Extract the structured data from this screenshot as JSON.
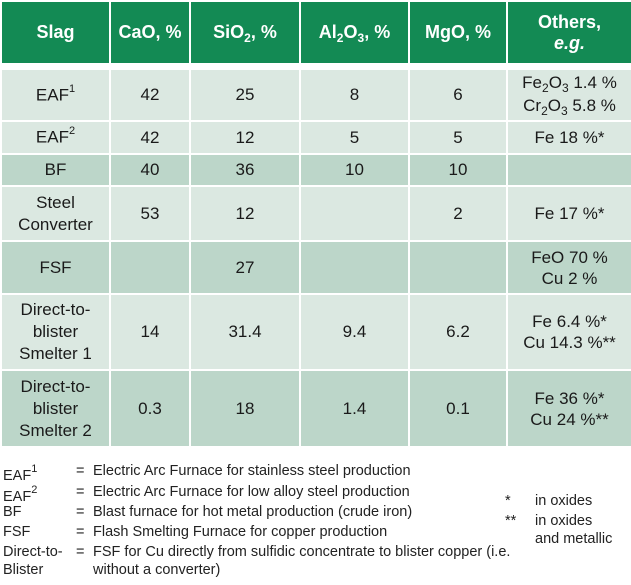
{
  "headers": {
    "slag": "Slag",
    "cao": "CaO, %",
    "sio2": [
      "SiO",
      "2",
      ", %"
    ],
    "al2o3": [
      "Al",
      "2",
      "O",
      "3",
      ", %"
    ],
    "mgo": "MgO, %",
    "others_line1": "Others,",
    "others_line2": "e.g."
  },
  "rows": [
    {
      "slag_lines": [
        "EAF"
      ],
      "sup": "1",
      "cao": "42",
      "sio2": "25",
      "al2o3": "8",
      "mgo": "6",
      "others_lines": [
        [
          "Fe",
          "2",
          "O",
          "3",
          " 1.4 %"
        ],
        [
          "Cr",
          "2",
          "O",
          "3",
          " 5.8 %"
        ]
      ]
    },
    {
      "slag_lines": [
        "EAF"
      ],
      "sup": "2",
      "cao": "42",
      "sio2": "12",
      "al2o3": "5",
      "mgo": "5",
      "others_lines": [
        "Fe 18 %*"
      ]
    },
    {
      "slag_lines": [
        "BF"
      ],
      "cao": "40",
      "sio2": "36",
      "al2o3": "10",
      "mgo": "10",
      "others_lines": []
    },
    {
      "slag_lines": [
        "Steel",
        "Converter"
      ],
      "cao": "53",
      "sio2": "12",
      "al2o3": "",
      "mgo": "2",
      "others_lines": [
        "Fe 17 %*"
      ]
    },
    {
      "slag_lines": [
        "FSF"
      ],
      "cao": "",
      "sio2": "27",
      "al2o3": "",
      "mgo": "",
      "others_lines": [
        "FeO 70 %",
        "Cu 2 %"
      ]
    },
    {
      "slag_lines": [
        "Direct-to-",
        "blister",
        "Smelter 1"
      ],
      "cao": "14",
      "sio2": "31.4",
      "al2o3": "9.4",
      "mgo": "6.2",
      "others_lines": [
        "Fe 6.4 %*",
        "Cu 14.3 %**"
      ]
    },
    {
      "slag_lines": [
        "Direct-to-",
        "blister",
        "Smelter 2"
      ],
      "cao": "0.3",
      "sio2": "18",
      "al2o3": "1.4",
      "mgo": "0.1",
      "others_lines": [
        "Fe 36 %*",
        "Cu 24 %**"
      ]
    }
  ],
  "footnotes": [
    {
      "key": "EAF",
      "sup": "1",
      "eq": "=",
      "text": "Electric Arc Furnace for stainless steel production"
    },
    {
      "key": "EAF",
      "sup": "2",
      "eq": "=",
      "text": "Electric Arc Furnace for low alloy steel production"
    },
    {
      "key": "BF",
      "eq": "=",
      "text": "Blast furnace for hot metal production (crude iron)"
    },
    {
      "key": "FSF",
      "eq": "=",
      "text": "Flash Smelting Furnace for copper production"
    },
    {
      "key_lines": [
        "Direct-to-",
        "Blister"
      ],
      "eq": "=",
      "text_lines": [
        "FSF for Cu directly from sulfidic concentrate to blister copper (i.e.",
        "without a converter)"
      ]
    }
  ],
  "star_notes": [
    {
      "key": "*",
      "text_lines": [
        "in oxides"
      ]
    },
    {
      "key": "**",
      "text_lines": [
        "in oxides",
        "and metallic"
      ]
    }
  ]
}
